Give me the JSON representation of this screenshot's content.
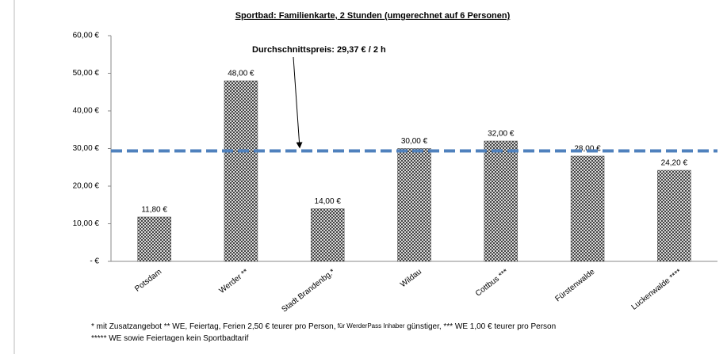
{
  "chart_data": {
    "type": "bar",
    "title": "Sportbad: Familienkarte, 2 Stunden (umgerechnet auf 6 Personen)",
    "categories": [
      "Potsdam",
      "Werder **",
      "Stadt Brandenbg.*",
      "Wildau",
      "Cottbus ***",
      "Fürstenwalde",
      "Luckenwalde ****"
    ],
    "values": [
      11.8,
      48,
      14,
      30,
      32,
      28,
      24.2
    ],
    "value_labels": [
      "11,80 €",
      "48,00 €",
      "14,00 €",
      "30,00 €",
      "32,00 €",
      "28,00 €",
      "24,20 €"
    ],
    "color": "#555555",
    "ylim": [
      0,
      60
    ],
    "yticks": [
      {
        "value": 0,
        "label": "-   €"
      },
      {
        "value": 10,
        "label": "10,00 €"
      },
      {
        "value": 20,
        "label": "20,00 €"
      },
      {
        "value": 30,
        "label": "30,00 €"
      },
      {
        "value": 40,
        "label": "40,00 €"
      },
      {
        "value": 50,
        "label": "50,00 €"
      },
      {
        "value": 60,
        "label": "60,00 €"
      }
    ],
    "grid": false,
    "average": 29.37,
    "average_color": "#4f81bd",
    "annotation": "Durchschnittspreis: 29,37 € / 2 h",
    "footnotes": [
      [
        "*  mit Zusatzangebot   ** WE, Feiertag, Ferien 2,50 € teurer pro Person,",
        " für WerderPass Inhaber",
        " günstiger, *** WE 1,00 € teurer pro Person"
      ],
      [
        "***** WE sowie Feiertagen kein Sportbadtarif"
      ]
    ]
  }
}
